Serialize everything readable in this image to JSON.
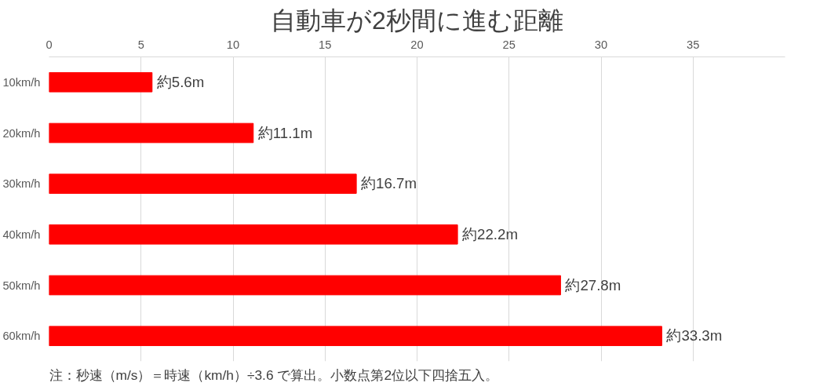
{
  "chart_data": {
    "type": "bar",
    "orientation": "horizontal",
    "title": "自動車が2秒間に進む距離",
    "categories": [
      "10km/h",
      "20km/h",
      "30km/h",
      "40km/h",
      "50km/h",
      "60km/h"
    ],
    "values": [
      5.6,
      11.1,
      16.7,
      22.2,
      27.8,
      33.3
    ],
    "value_labels": [
      "約5.6m",
      "約11.1m",
      "約16.7m",
      "約22.2m",
      "約27.8m",
      "約33.3m"
    ],
    "color": "#ff0000",
    "xlim": [
      0,
      40
    ],
    "xticks": [
      0,
      5,
      10,
      15,
      20,
      25,
      30,
      35
    ],
    "grid": "x",
    "annotations": [
      "注：秒速（m/s）＝時速（km/h）÷3.6 で算出。小数点第2位以下四捨五入。"
    ]
  }
}
